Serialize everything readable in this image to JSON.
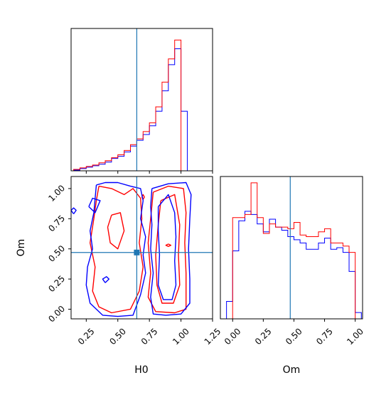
{
  "chart_data": {
    "type": "corner",
    "parameters": [
      "H0",
      "Om"
    ],
    "truth": {
      "H0": 0.65,
      "Om": 0.47
    },
    "colors": {
      "run_a": "#0000ff",
      "run_b": "#ff0000",
      "truth": "#1f77b4"
    },
    "axes": {
      "H0": {
        "range": [
          0.13,
          1.25
        ],
        "ticks": [
          "0.25",
          "0.50",
          "0.75",
          "1.00",
          "1.25"
        ],
        "tick_values": [
          0.25,
          0.5,
          0.75,
          1.0,
          1.25
        ],
        "label": "H0"
      },
      "Om": {
        "range": [
          -0.08,
          1.1
        ],
        "ticks": [
          "0.00",
          "0.25",
          "0.50",
          "0.75",
          "1.00"
        ],
        "tick_values": [
          0,
          0.25,
          0.5,
          0.75,
          1.0
        ],
        "label": "Om"
      },
      "Om_hist_x": {
        "range": [
          -0.1,
          1.06
        ],
        "ticks": [
          "0.00",
          "0.25",
          "0.50",
          "0.75",
          "1.00"
        ],
        "tick_values": [
          0,
          0.25,
          0.5,
          0.75,
          1.0
        ]
      }
    },
    "hist_H0": {
      "run_a": {
        "edges": [
          0.15,
          0.2,
          0.25,
          0.3,
          0.35,
          0.4,
          0.45,
          0.5,
          0.55,
          0.6,
          0.65,
          0.7,
          0.75,
          0.8,
          0.85,
          0.9,
          0.95,
          1.0,
          1.05
        ],
        "counts": [
          0.005,
          0.015,
          0.025,
          0.035,
          0.045,
          0.06,
          0.085,
          0.1,
          0.13,
          0.17,
          0.21,
          0.25,
          0.31,
          0.41,
          0.55,
          0.73,
          0.84,
          0.41
        ]
      },
      "run_b": {
        "edges": [
          0.15,
          0.2,
          0.25,
          0.3,
          0.35,
          0.4,
          0.45,
          0.5,
          0.55,
          0.6,
          0.65,
          0.7,
          0.75,
          0.8,
          0.85,
          0.9,
          0.95,
          1.0
        ],
        "counts": [
          0.01,
          0.02,
          0.03,
          0.04,
          0.055,
          0.07,
          0.09,
          0.11,
          0.14,
          0.18,
          0.22,
          0.27,
          0.33,
          0.44,
          0.61,
          0.77,
          0.9
        ]
      }
    },
    "hist_Om": {
      "run_a": {
        "edges": [
          -0.1,
          -0.05,
          0.0,
          0.05,
          0.1,
          0.15,
          0.2,
          0.25,
          0.3,
          0.35,
          0.4,
          0.45,
          0.5,
          0.55,
          0.6,
          0.65,
          0.7,
          0.75,
          0.8,
          0.85,
          0.9,
          0.95,
          1.0,
          1.05
        ],
        "counts": [
          0.0,
          0.11,
          0.43,
          0.62,
          0.68,
          0.66,
          0.6,
          0.55,
          0.63,
          0.58,
          0.56,
          0.52,
          0.5,
          0.48,
          0.44,
          0.44,
          0.48,
          0.51,
          0.44,
          0.45,
          0.42,
          0.3,
          0.04
        ]
      },
      "run_b": {
        "edges": [
          0.0,
          0.05,
          0.1,
          0.15,
          0.2,
          0.25,
          0.3,
          0.35,
          0.4,
          0.45,
          0.5,
          0.55,
          0.6,
          0.65,
          0.7,
          0.75,
          0.8,
          0.85,
          0.9,
          0.95,
          1.0
        ],
        "counts": [
          0.64,
          0.64,
          0.66,
          0.86,
          0.64,
          0.54,
          0.6,
          0.58,
          0.58,
          0.57,
          0.61,
          0.53,
          0.52,
          0.52,
          0.55,
          0.57,
          0.48,
          0.48,
          0.46,
          0.42
        ]
      }
    },
    "contours": {
      "run_a": [
        [
          [
            0.33,
            1.03
          ],
          [
            0.4,
            1.05
          ],
          [
            0.5,
            1.05
          ],
          [
            0.6,
            1.02
          ],
          [
            0.68,
            1.0
          ],
          [
            0.7,
            0.9
          ],
          [
            0.68,
            0.75
          ],
          [
            0.72,
            0.6
          ],
          [
            0.7,
            0.45
          ],
          [
            0.72,
            0.3
          ],
          [
            0.68,
            0.12
          ],
          [
            0.62,
            -0.05
          ],
          [
            0.5,
            -0.06
          ],
          [
            0.38,
            -0.05
          ],
          [
            0.28,
            0.05
          ],
          [
            0.25,
            0.2
          ],
          [
            0.26,
            0.35
          ],
          [
            0.3,
            0.5
          ],
          [
            0.28,
            0.65
          ],
          [
            0.31,
            0.8
          ],
          [
            0.33,
            1.03
          ]
        ],
        [
          [
            0.77,
            1.0
          ],
          [
            0.9,
            1.04
          ],
          [
            1.04,
            1.05
          ],
          [
            1.08,
            0.95
          ],
          [
            1.07,
            0.75
          ],
          [
            1.06,
            0.5
          ],
          [
            1.07,
            0.25
          ],
          [
            1.07,
            0.05
          ],
          [
            1.0,
            -0.04
          ],
          [
            0.88,
            -0.05
          ],
          [
            0.78,
            -0.04
          ],
          [
            0.76,
            0.1
          ],
          [
            0.78,
            0.3
          ],
          [
            0.76,
            0.5
          ],
          [
            0.77,
            0.7
          ],
          [
            0.76,
            0.85
          ],
          [
            0.77,
            1.0
          ]
        ],
        [
          [
            0.27,
            0.85
          ],
          [
            0.32,
            0.8
          ],
          [
            0.36,
            0.9
          ],
          [
            0.3,
            0.92
          ],
          [
            0.27,
            0.85
          ]
        ],
        [
          [
            0.82,
            0.85
          ],
          [
            0.9,
            0.95
          ],
          [
            0.95,
            0.8
          ],
          [
            0.96,
            0.6
          ],
          [
            0.95,
            0.4
          ],
          [
            0.96,
            0.2
          ],
          [
            0.93,
            0.08
          ],
          [
            0.86,
            0.08
          ],
          [
            0.82,
            0.2
          ],
          [
            0.83,
            0.45
          ],
          [
            0.82,
            0.65
          ],
          [
            0.82,
            0.85
          ]
        ],
        [
          [
            0.15,
            0.79
          ],
          [
            0.17,
            0.82
          ],
          [
            0.15,
            0.84
          ],
          [
            0.13,
            0.82
          ],
          [
            0.15,
            0.79
          ]
        ],
        [
          [
            0.4,
            0.22
          ],
          [
            0.43,
            0.25
          ],
          [
            0.41,
            0.27
          ],
          [
            0.38,
            0.25
          ],
          [
            0.4,
            0.22
          ]
        ]
      ],
      "run_b": [
        [
          [
            0.35,
            1.02
          ],
          [
            0.45,
            1.0
          ],
          [
            0.55,
            0.95
          ],
          [
            0.62,
            1.0
          ],
          [
            0.68,
            0.92
          ],
          [
            0.69,
            0.75
          ],
          [
            0.67,
            0.55
          ],
          [
            0.7,
            0.35
          ],
          [
            0.67,
            0.15
          ],
          [
            0.6,
            0.0
          ],
          [
            0.45,
            -0.03
          ],
          [
            0.35,
            0.02
          ],
          [
            0.3,
            0.15
          ],
          [
            0.32,
            0.35
          ],
          [
            0.28,
            0.55
          ],
          [
            0.31,
            0.75
          ],
          [
            0.33,
            0.9
          ],
          [
            0.35,
            1.02
          ]
        ],
        [
          [
            0.78,
            0.97
          ],
          [
            0.9,
            1.02
          ],
          [
            1.02,
            1.0
          ],
          [
            1.04,
            0.8
          ],
          [
            1.03,
            0.55
          ],
          [
            1.04,
            0.3
          ],
          [
            1.04,
            0.0
          ],
          [
            0.95,
            -0.03
          ],
          [
            0.8,
            -0.02
          ],
          [
            0.74,
            0.1
          ],
          [
            0.76,
            0.3
          ],
          [
            0.74,
            0.55
          ],
          [
            0.76,
            0.75
          ],
          [
            0.78,
            0.97
          ]
        ],
        [
          [
            0.84,
            0.9
          ],
          [
            0.95,
            0.95
          ],
          [
            0.99,
            0.7
          ],
          [
            0.98,
            0.45
          ],
          [
            0.99,
            0.2
          ],
          [
            0.94,
            0.05
          ],
          [
            0.85,
            0.05
          ],
          [
            0.81,
            0.2
          ],
          [
            0.8,
            0.45
          ],
          [
            0.82,
            0.7
          ],
          [
            0.84,
            0.9
          ]
        ],
        [
          [
            0.45,
            0.78
          ],
          [
            0.52,
            0.8
          ],
          [
            0.55,
            0.65
          ],
          [
            0.5,
            0.5
          ],
          [
            0.44,
            0.55
          ],
          [
            0.42,
            0.68
          ],
          [
            0.45,
            0.78
          ]
        ],
        [
          [
            0.69,
            0.93
          ],
          [
            0.7,
            0.95
          ],
          [
            0.71,
            0.93
          ],
          [
            0.7,
            0.91
          ],
          [
            0.69,
            0.93
          ]
        ],
        [
          [
            0.9,
            0.54
          ],
          [
            0.92,
            0.53
          ],
          [
            0.9,
            0.52
          ],
          [
            0.88,
            0.53
          ],
          [
            0.9,
            0.54
          ]
        ]
      ]
    }
  }
}
